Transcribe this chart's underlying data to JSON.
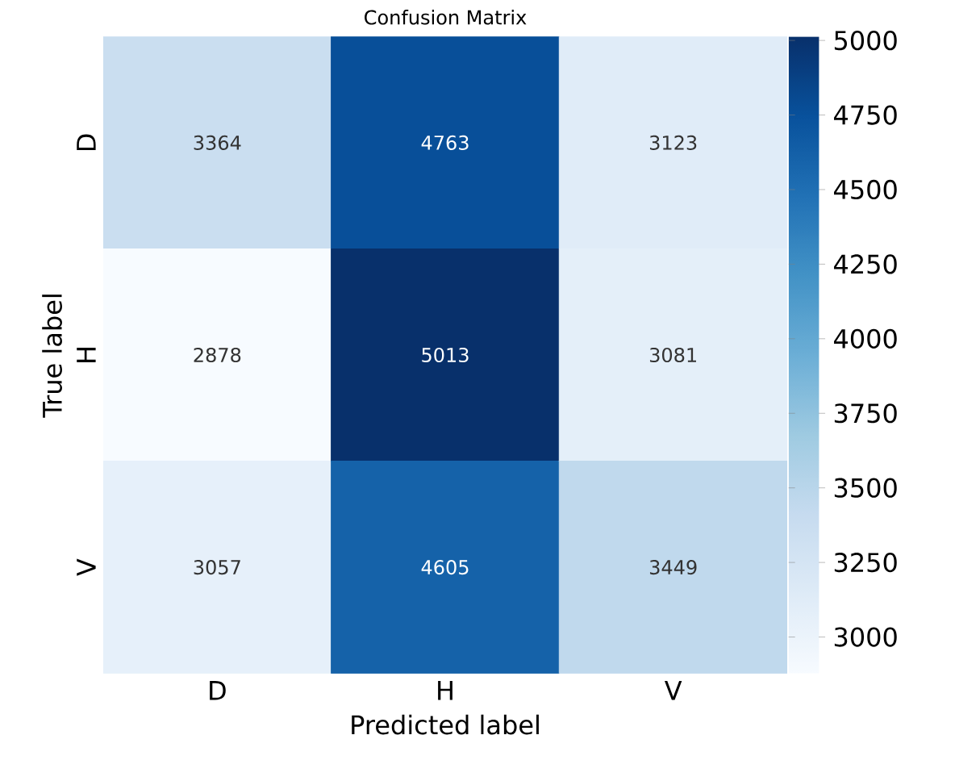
{
  "chart_data": {
    "type": "heatmap",
    "title": "Confusion Matrix",
    "xlabel": "Predicted label",
    "ylabel": "True label",
    "categories": [
      "D",
      "H",
      "V"
    ],
    "y_categories": [
      "D",
      "H",
      "V"
    ],
    "cells": [
      [
        3364,
        4763,
        3123
      ],
      [
        2878,
        5013,
        3081
      ],
      [
        3057,
        4605,
        3449
      ]
    ],
    "data_labels": true,
    "clim": [
      2878,
      5013
    ],
    "cticks": [
      3000,
      3250,
      3500,
      3750,
      4000,
      4250,
      4500,
      4750,
      5000
    ]
  }
}
